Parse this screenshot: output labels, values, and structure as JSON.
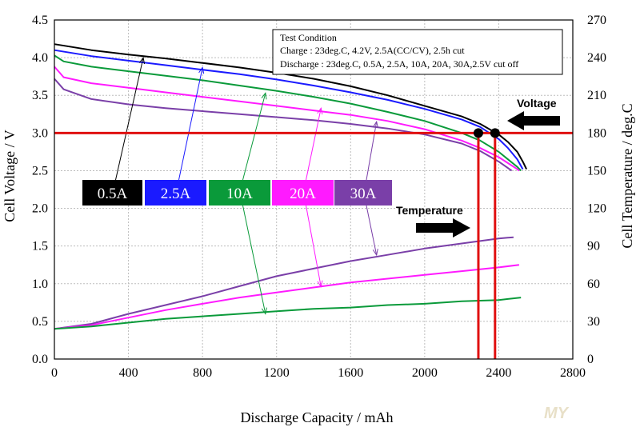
{
  "chart_data": {
    "type": "line",
    "title": "",
    "xlabel": "Discharge Capacity / mAh",
    "ylabel": "Cell Voltage / V",
    "y2label": "Cell Temperature / deg.C",
    "xlim": [
      0,
      2800
    ],
    "ylim": [
      0,
      4.5
    ],
    "y2lim": [
      0,
      270
    ],
    "xticks": [
      "0",
      "400",
      "800",
      "1200",
      "1600",
      "2000",
      "2400",
      "2800"
    ],
    "yticks": [
      "0.0",
      "0.5",
      "1.0",
      "1.5",
      "2.0",
      "2.5",
      "3.0",
      "3.5",
      "4.0",
      "4.5"
    ],
    "y2ticks": [
      "0",
      "30",
      "60",
      "90",
      "120",
      "150",
      "180",
      "210",
      "240",
      "270"
    ],
    "grid": true,
    "test_condition": {
      "heading": "Test Condition",
      "charge": "Charge : 23deg.C, 4.2V, 2.5A(CC/CV), 2.5h cut",
      "discharge": "Discharge : 23deg.C, 0.5A, 2.5A, 10A, 20A, 30A,2.5V cut off"
    },
    "annotations": {
      "voltage": "Voltage",
      "temperature": "Temperature"
    },
    "reference_line": {
      "voltage": 3.0,
      "capacities": [
        2290,
        2380
      ]
    },
    "colors": {
      "0.5A": "#000000",
      "2.5A": "#1a1aff",
      "10A": "#0a9a3a",
      "20A": "#ff1aff",
      "30A": "#7a3fa8",
      "reference": "#e01010"
    },
    "series": [
      {
        "name": "0.5A",
        "axis": "voltage",
        "x": [
          0,
          200,
          400,
          600,
          800,
          1000,
          1200,
          1400,
          1600,
          1800,
          2000,
          2200,
          2300,
          2400,
          2450,
          2500,
          2530,
          2550
        ],
        "y": [
          4.18,
          4.1,
          4.04,
          3.99,
          3.93,
          3.87,
          3.8,
          3.72,
          3.62,
          3.5,
          3.36,
          3.22,
          3.12,
          2.98,
          2.88,
          2.75,
          2.62,
          2.52
        ]
      },
      {
        "name": "2.5A",
        "axis": "voltage",
        "x": [
          0,
          200,
          400,
          600,
          800,
          1000,
          1200,
          1400,
          1600,
          1800,
          2000,
          2200,
          2300,
          2400,
          2450,
          2500,
          2530
        ],
        "y": [
          4.1,
          4.02,
          3.96,
          3.9,
          3.84,
          3.78,
          3.71,
          3.63,
          3.54,
          3.44,
          3.32,
          3.18,
          3.08,
          2.92,
          2.8,
          2.65,
          2.52
        ]
      },
      {
        "name": "10A",
        "axis": "voltage",
        "x": [
          0,
          50,
          200,
          400,
          600,
          800,
          1000,
          1200,
          1400,
          1600,
          1800,
          2000,
          2200,
          2300,
          2400,
          2450,
          2500,
          2520
        ],
        "y": [
          4.03,
          3.95,
          3.88,
          3.82,
          3.76,
          3.7,
          3.63,
          3.56,
          3.48,
          3.39,
          3.28,
          3.16,
          3.0,
          2.9,
          2.75,
          2.65,
          2.55,
          2.5
        ]
      },
      {
        "name": "20A",
        "axis": "voltage",
        "x": [
          0,
          50,
          200,
          400,
          600,
          800,
          1000,
          1200,
          1400,
          1600,
          1800,
          2000,
          2200,
          2300,
          2400,
          2450,
          2500,
          2510
        ],
        "y": [
          3.88,
          3.74,
          3.66,
          3.6,
          3.54,
          3.48,
          3.42,
          3.36,
          3.3,
          3.24,
          3.16,
          3.05,
          2.9,
          2.8,
          2.68,
          2.6,
          2.52,
          2.5
        ]
      },
      {
        "name": "30A",
        "axis": "voltage",
        "x": [
          0,
          50,
          200,
          400,
          600,
          800,
          1000,
          1200,
          1400,
          1600,
          1800,
          2000,
          2200,
          2300,
          2400,
          2470
        ],
        "y": [
          3.72,
          3.58,
          3.45,
          3.38,
          3.33,
          3.29,
          3.25,
          3.21,
          3.17,
          3.12,
          3.06,
          2.98,
          2.86,
          2.76,
          2.62,
          2.5
        ]
      },
      {
        "name": "30A",
        "axis": "temperature",
        "x": [
          0,
          200,
          400,
          600,
          800,
          1000,
          1200,
          1400,
          1600,
          1800,
          2000,
          2200,
          2400,
          2480
        ],
        "y": [
          24,
          28,
          36,
          43,
          50,
          58,
          66,
          72,
          78,
          83,
          88,
          92,
          96,
          97
        ]
      },
      {
        "name": "20A",
        "axis": "temperature",
        "x": [
          0,
          200,
          400,
          600,
          800,
          1000,
          1200,
          1400,
          1600,
          1800,
          2000,
          2200,
          2400,
          2510
        ],
        "y": [
          24,
          27,
          33,
          39,
          44,
          49,
          53,
          57,
          61,
          64,
          67,
          70,
          73,
          75
        ]
      },
      {
        "name": "10A",
        "axis": "temperature",
        "x": [
          0,
          200,
          400,
          600,
          800,
          1000,
          1200,
          1400,
          1600,
          1800,
          2000,
          2200,
          2400,
          2520
        ],
        "y": [
          24,
          26,
          29,
          32,
          34,
          36,
          38,
          40,
          41,
          43,
          44,
          46,
          47,
          49
        ]
      }
    ],
    "callouts": [
      {
        "label": "0.5A",
        "point": [
          480,
          4.0
        ]
      },
      {
        "label": "2.5A",
        "point": [
          800,
          3.87
        ]
      },
      {
        "label": "10A",
        "point": [
          1140,
          0.6
        ]
      },
      {
        "label": "10A",
        "point": [
          1140,
          3.53
        ]
      },
      {
        "label": "20A",
        "point": [
          1440,
          0.96
        ]
      },
      {
        "label": "20A",
        "point": [
          1440,
          3.33
        ]
      },
      {
        "label": "30A",
        "point": [
          1740,
          1.38
        ]
      },
      {
        "label": "30A",
        "point": [
          1740,
          3.15
        ]
      }
    ]
  },
  "watermark": "MY"
}
